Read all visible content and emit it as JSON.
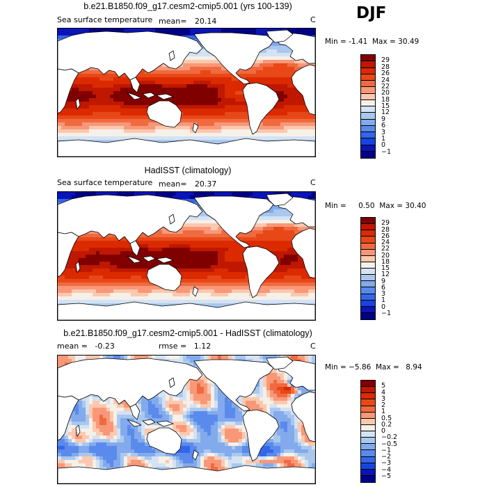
{
  "season": "DJF",
  "panels": [
    {
      "title": "b.e21.B1850.f09_g17.cesm2-cmip5.001 (yrs 100-139)",
      "left_label": "Sea surface temperature",
      "mean_label": "mean=",
      "mean": "20.14",
      "units": "C",
      "min_label": "Min =",
      "min": "-1.41",
      "max_label": "Max =",
      "max": "30.49",
      "levels": [
        "29",
        "28",
        "26",
        "24",
        "22",
        "20",
        "18",
        "15",
        "12",
        "9",
        "6",
        "3",
        "1",
        "0",
        "−1"
      ],
      "colors": [
        "#800000",
        "#c01700",
        "#dc2a00",
        "#e84818",
        "#f06a40",
        "#f89878",
        "#fcc8b0",
        "#f5f0e8",
        "#d4e2f4",
        "#aac8ee",
        "#82aaec",
        "#5a8aec",
        "#3466ea",
        "#1844de",
        "#0a14b8",
        "#000087"
      ],
      "kind": "sst"
    },
    {
      "title": "HadISST (climatology)",
      "left_label": "Sea surface temperature",
      "mean_label": "mean=",
      "mean": "20.37",
      "units": "C",
      "min_label": "Min =",
      "min": "0.50",
      "max_label": "Max =",
      "max": "30.40",
      "levels": [
        "29",
        "28",
        "26",
        "24",
        "22",
        "20",
        "18",
        "15",
        "12",
        "9",
        "6",
        "3",
        "1",
        "0",
        "−1"
      ],
      "colors": [
        "#800000",
        "#c01700",
        "#dc2a00",
        "#e84818",
        "#f06a40",
        "#f89878",
        "#fcc8b0",
        "#f5f0e8",
        "#d4e2f4",
        "#aac8ee",
        "#82aaec",
        "#5a8aec",
        "#3466ea",
        "#1844de",
        "#0a14b8",
        "#000087"
      ],
      "kind": "sst"
    },
    {
      "title": "b.e21.B1850.f09_g17.cesm2-cmip5.001 - HadISST (climatology)",
      "mean_label": "mean =",
      "mean": "-0.23",
      "rmse_label": "rmse =",
      "rmse": "1.12",
      "units": "C",
      "min_label": "Min =",
      "min": "−5.86",
      "max_label": "Max =",
      "max": "8.94",
      "levels": [
        "5",
        "4",
        "3",
        "2",
        "1",
        "0.5",
        "0.2",
        "0",
        "−0.2",
        "−0.5",
        "−1",
        "−2",
        "−3",
        "−4",
        "−5"
      ],
      "colors": [
        "#800000",
        "#c01700",
        "#dc2a00",
        "#e84818",
        "#f06a40",
        "#f89878",
        "#fcc8b0",
        "#f5f0e8",
        "#d4e2f4",
        "#aac8ee",
        "#82aaec",
        "#5a8aec",
        "#3466ea",
        "#1844de",
        "#0a14b8",
        "#000087"
      ],
      "kind": "diff"
    }
  ]
}
